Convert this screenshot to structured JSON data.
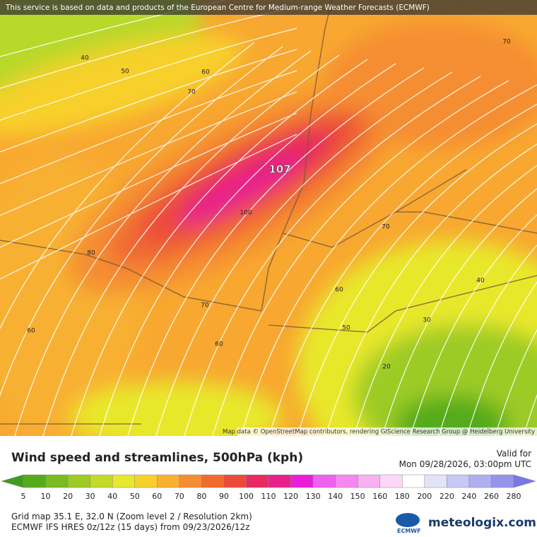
{
  "notice": "This service is based on data and products of the European Centre for Medium-range Weather Forecasts (ECMWF)",
  "map_attribution": "Map data © OpenStreetMap contributors, rendering GIScience Research Group @ Heidelberg University",
  "contour_labels": [
    40,
    50,
    60,
    70,
    70,
    107,
    100,
    80,
    70,
    60,
    40,
    30,
    50,
    60,
    70,
    60,
    20
  ],
  "title": "Wind speed and streamlines, 500hPa (kph)",
  "valid_label": "Valid for",
  "valid_time": "Mon 09/28/2026, 03:00pm UTC",
  "colorbar": {
    "values": [
      5,
      10,
      20,
      30,
      40,
      50,
      60,
      70,
      80,
      90,
      100,
      110,
      120,
      130,
      140,
      150,
      160,
      180,
      200,
      220,
      240,
      260,
      280
    ],
    "colors": [
      "#3f9d1b",
      "#55ab1d",
      "#79bb20",
      "#9dcb25",
      "#c3da27",
      "#e8e82c",
      "#f8d02c",
      "#f8b030",
      "#f58e32",
      "#f06a30",
      "#ec4a3a",
      "#e82860",
      "#e8208e",
      "#e81ed8",
      "#f060f0",
      "#f488f0",
      "#f8b0f0",
      "#fcd8f8",
      "#ffffff",
      "#e2e2f8",
      "#c8c8f4",
      "#aeaef0",
      "#9494ec",
      "#7878e8"
    ]
  },
  "footer": [
    "Grid map 35.1 E, 32.0 N (Zoom level 2 / Resolution 2km)",
    "ECMWF IFS HRES 0z/12z (15 days) from 09/23/2026/12z"
  ],
  "logos": [
    "ECMWF",
    "meteologix.com"
  ]
}
